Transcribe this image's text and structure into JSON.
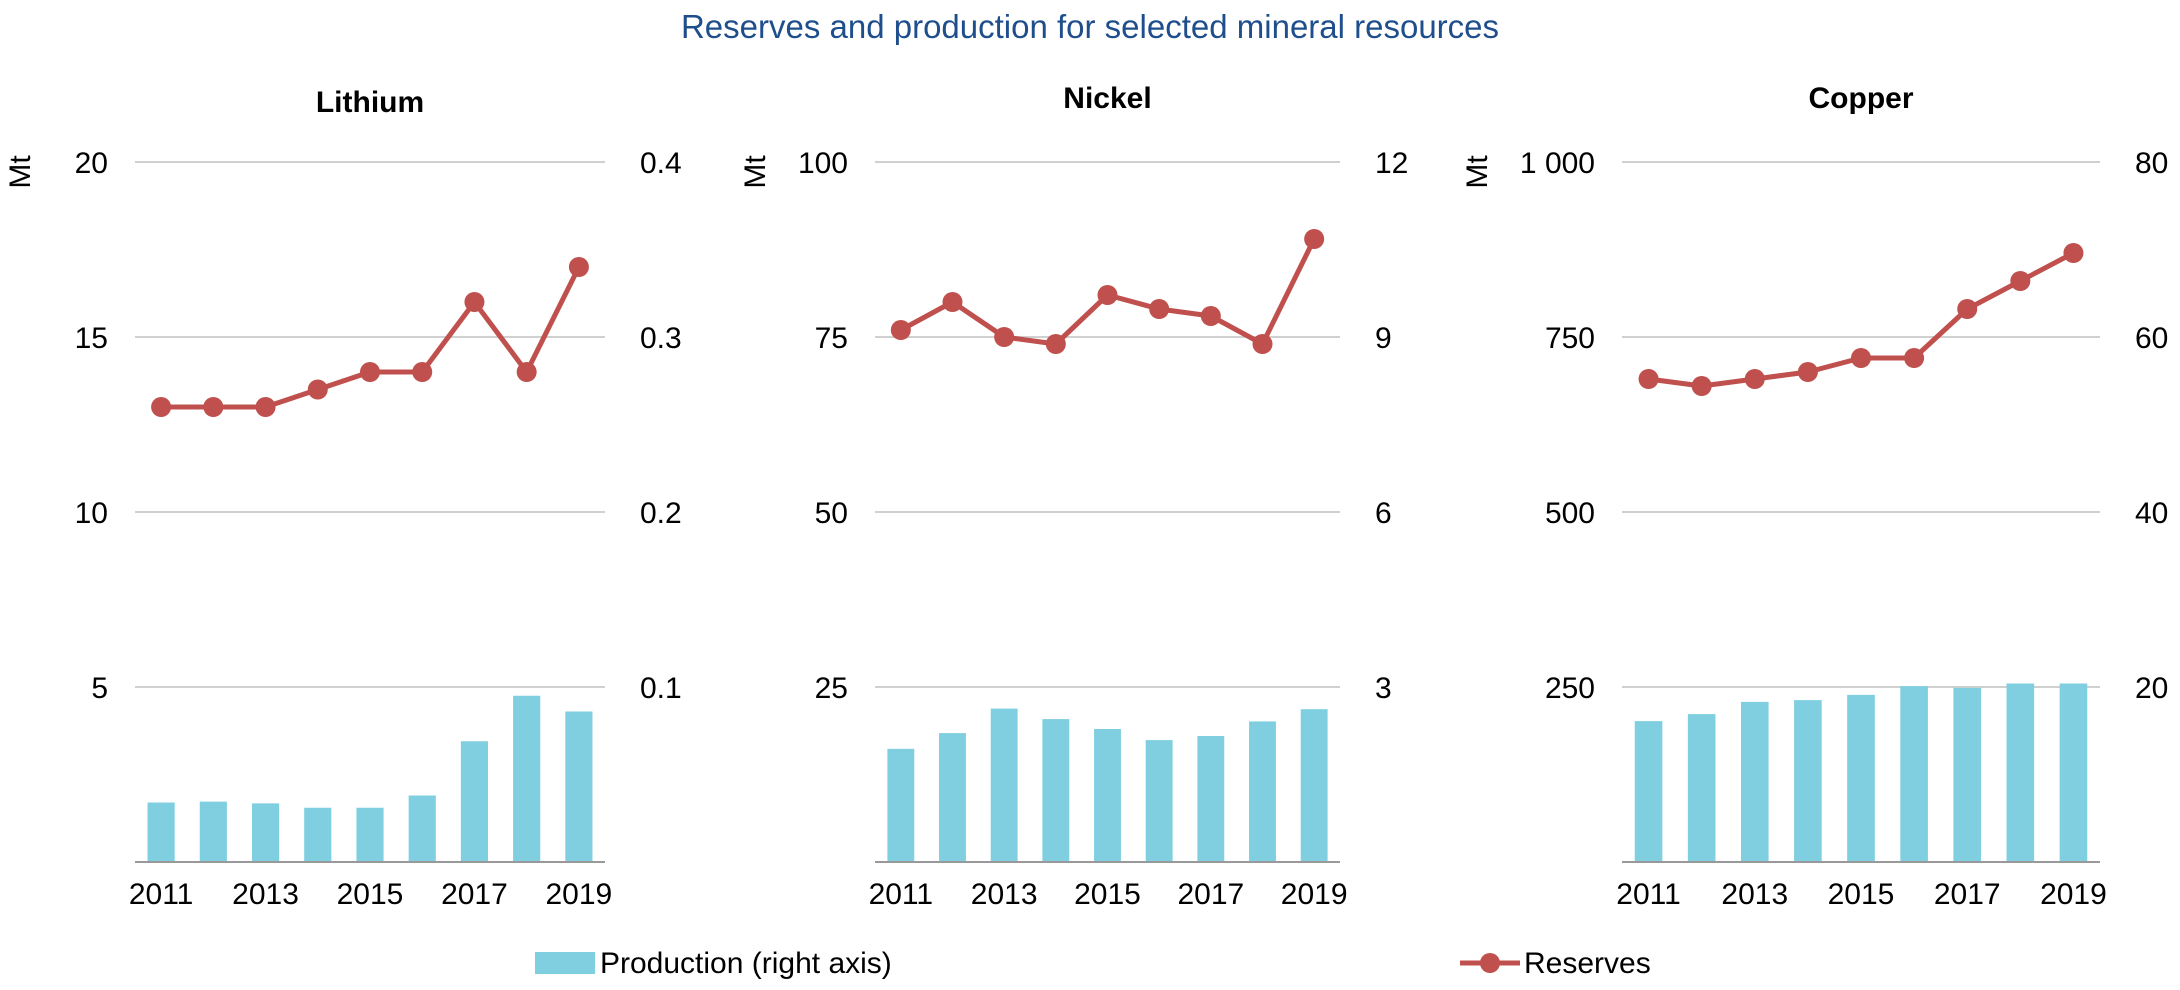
{
  "title": "Reserves and production for selected mineral resources",
  "legend": {
    "production_label": "Production (right axis)",
    "reserves_label": "Reserves",
    "placement": "bottom"
  },
  "colors": {
    "title": "#1f4e8c",
    "bar": "#7fcfe0",
    "line": "#c0504d",
    "grid": "#d0d0d0",
    "axis": "#999999",
    "text": "#000000"
  },
  "chart_data": [
    {
      "type": "bar+line",
      "title": "Lithium",
      "ylabel": "Mt",
      "categories": [
        "2011",
        "2012",
        "2013",
        "2014",
        "2015",
        "2016",
        "2017",
        "2018",
        "2019"
      ],
      "x_tick_labels": [
        "2011",
        "2013",
        "2015",
        "2017",
        "2019"
      ],
      "left_axis": {
        "ylim": [
          0,
          20
        ],
        "ticks": [
          "5",
          "10",
          "15",
          "20"
        ],
        "tick_values": [
          5,
          10,
          15,
          20
        ]
      },
      "right_axis": {
        "ylim": [
          0,
          0.4
        ],
        "ticks": [
          "0.1",
          "0.2",
          "0.3",
          "0.4"
        ],
        "tick_values": [
          0.1,
          0.2,
          0.3,
          0.4
        ]
      },
      "grid": true,
      "series": [
        {
          "name": "Production (right axis)",
          "type": "bar",
          "axis": "right",
          "values": [
            0.034,
            0.0345,
            0.0335,
            0.031,
            0.031,
            0.038,
            0.069,
            0.095,
            0.086
          ]
        },
        {
          "name": "Reserves",
          "type": "line",
          "axis": "left",
          "values": [
            13,
            13,
            13,
            13.5,
            14,
            14,
            16,
            14,
            17
          ]
        }
      ]
    },
    {
      "type": "bar+line",
      "title": "Nickel",
      "ylabel": "Mt",
      "categories": [
        "2011",
        "2012",
        "2013",
        "2014",
        "2015",
        "2016",
        "2017",
        "2018",
        "2019"
      ],
      "x_tick_labels": [
        "2011",
        "2013",
        "2015",
        "2017",
        "2019"
      ],
      "left_axis": {
        "ylim": [
          0,
          100
        ],
        "ticks": [
          "25",
          "50",
          "75",
          "100"
        ],
        "tick_values": [
          25,
          50,
          75,
          100
        ]
      },
      "right_axis": {
        "ylim": [
          0,
          12
        ],
        "ticks": [
          "3",
          "6",
          "9",
          "12"
        ],
        "tick_values": [
          3,
          6,
          9,
          12
        ]
      },
      "grid": true,
      "series": [
        {
          "name": "Production (right axis)",
          "type": "bar",
          "axis": "right",
          "values": [
            1.94,
            2.21,
            2.63,
            2.45,
            2.28,
            2.09,
            2.16,
            2.41,
            2.62
          ]
        },
        {
          "name": "Reserves",
          "type": "line",
          "axis": "left",
          "values": [
            76,
            80,
            75,
            74,
            81,
            79,
            78,
            74,
            89
          ]
        }
      ]
    },
    {
      "type": "bar+line",
      "title": "Copper",
      "ylabel": "Mt",
      "categories": [
        "2011",
        "2012",
        "2013",
        "2014",
        "2015",
        "2016",
        "2017",
        "2018",
        "2019"
      ],
      "x_tick_labels": [
        "2011",
        "2013",
        "2015",
        "2017",
        "2019"
      ],
      "left_axis": {
        "ylim": [
          0,
          1000
        ],
        "ticks": [
          "250",
          "500",
          "750",
          "1 000"
        ],
        "tick_values": [
          250,
          500,
          750,
          1000
        ]
      },
      "right_axis": {
        "ylim": [
          0,
          80
        ],
        "ticks": [
          "20",
          "40",
          "60",
          "80"
        ],
        "tick_values": [
          20,
          40,
          60,
          80
        ]
      },
      "grid": true,
      "series": [
        {
          "name": "Production (right axis)",
          "type": "bar",
          "axis": "right",
          "values": [
            16.1,
            16.9,
            18.3,
            18.5,
            19.1,
            20.1,
            19.9,
            20.4,
            20.4
          ]
        },
        {
          "name": "Reserves",
          "type": "line",
          "axis": "left",
          "values": [
            690,
            680,
            690,
            700,
            720,
            720,
            790,
            830,
            870
          ]
        }
      ]
    }
  ]
}
